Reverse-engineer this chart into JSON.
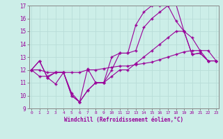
{
  "xlabel": "Windchill (Refroidissement éolien,°C)",
  "bg_color": "#cceee8",
  "grid_color": "#aadddd",
  "line_color": "#990099",
  "xmin": 0,
  "xmax": 23,
  "ymin": 9,
  "ymax": 17,
  "line1_x": [
    0,
    1,
    2,
    3,
    4,
    5,
    6,
    7,
    8,
    9,
    10,
    11,
    12,
    13,
    14,
    15,
    16,
    17,
    18,
    19,
    20,
    21,
    22,
    23
  ],
  "line1_y": [
    12.0,
    12.7,
    11.4,
    10.9,
    11.8,
    10.0,
    9.5,
    10.4,
    11.0,
    11.0,
    12.0,
    13.3,
    13.3,
    13.5,
    15.3,
    16.0,
    16.5,
    17.0,
    17.1,
    15.0,
    13.2,
    13.3,
    12.7,
    12.7
  ],
  "line2_x": [
    0,
    1,
    2,
    3,
    4,
    5,
    6,
    7,
    8,
    9,
    10,
    11,
    12,
    13,
    14,
    15,
    16,
    17,
    18,
    19,
    20,
    21,
    22,
    23
  ],
  "line2_y": [
    12.0,
    12.7,
    11.4,
    11.8,
    11.8,
    10.0,
    9.5,
    12.1,
    11.0,
    11.0,
    13.0,
    13.3,
    13.3,
    15.5,
    16.5,
    17.0,
    17.0,
    17.0,
    15.8,
    15.0,
    13.2,
    13.3,
    12.7,
    12.7
  ],
  "line3_x": [
    0,
    1,
    2,
    3,
    4,
    5,
    6,
    7,
    8,
    9,
    10,
    11,
    12,
    13,
    14,
    15,
    16,
    17,
    18,
    19,
    20,
    21,
    22,
    23
  ],
  "line3_y": [
    12.0,
    12.0,
    11.8,
    11.8,
    11.8,
    11.8,
    11.8,
    12.0,
    12.0,
    12.1,
    12.2,
    12.3,
    12.3,
    12.4,
    12.5,
    12.6,
    12.8,
    13.0,
    13.2,
    13.4,
    13.5,
    13.5,
    13.5,
    12.7
  ],
  "line4_x": [
    0,
    1,
    2,
    3,
    4,
    5,
    6,
    7,
    8,
    9,
    10,
    11,
    12,
    13,
    14,
    15,
    16,
    17,
    18,
    19,
    20,
    21,
    22,
    23
  ],
  "line4_y": [
    12.0,
    11.5,
    11.5,
    11.8,
    11.8,
    10.2,
    9.5,
    10.4,
    11.0,
    11.0,
    11.5,
    12.0,
    12.0,
    12.5,
    13.0,
    13.5,
    14.0,
    14.5,
    15.0,
    15.0,
    14.5,
    13.5,
    12.7,
    12.7
  ]
}
